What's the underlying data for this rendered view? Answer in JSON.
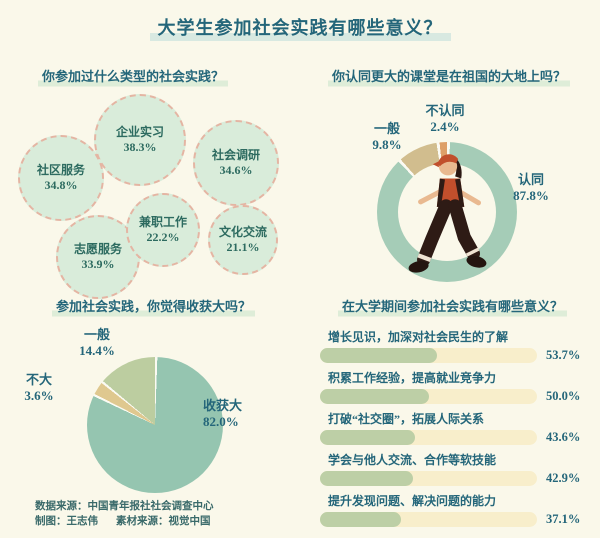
{
  "page": {
    "title": "大学生参加社会实践有哪些意义？",
    "footer": {
      "source": "数据来源：中国青年报社社会调查中心",
      "credit": "制图：王志伟",
      "material": "素材来源：视觉中国"
    }
  },
  "colors": {
    "background": "#FAF8EA",
    "title_text": "#24667A",
    "title_highlight": "#D8E9E1",
    "section_highlight": "#DEEDD8",
    "bubble_fill": "#D9ECDA",
    "bubble_border": "#E4B5A3",
    "bar_fill": "#BDCFA6",
    "bar_track": "#F8EECB"
  },
  "chart_data": [
    {
      "type": "bubble",
      "title": "你参加过什么类型的社会实践？",
      "items": [
        {
          "label": "企业实习",
          "value": 38.3,
          "display": "38.3%"
        },
        {
          "label": "社区服务",
          "value": 34.8,
          "display": "34.8%"
        },
        {
          "label": "社会调研",
          "value": 34.6,
          "display": "34.6%"
        },
        {
          "label": "志愿服务",
          "value": 33.9,
          "display": "33.9%"
        },
        {
          "label": "兼职工作",
          "value": 22.2,
          "display": "22.2%"
        },
        {
          "label": "文化交流",
          "value": 21.1,
          "display": "21.1%"
        }
      ]
    },
    {
      "type": "donut",
      "title": "你认同更大的课堂是在祖国的大地上吗？",
      "center_illustration": "walking-person",
      "slices": [
        {
          "label": "认同",
          "value": 87.8,
          "display": "87.8%",
          "color": "#A5CCB7"
        },
        {
          "label": "一般",
          "value": 9.8,
          "display": "9.8%",
          "color": "#D1BD8E"
        },
        {
          "label": "不认同",
          "value": 2.4,
          "display": "2.4%",
          "color": "#DE9F68"
        }
      ]
    },
    {
      "type": "pie",
      "title": "参加社会实践，你觉得收获大吗？",
      "slices": [
        {
          "label": "收获大",
          "value": 82.0,
          "display": "82.0%",
          "color": "#95C5B0"
        },
        {
          "label": "不大",
          "value": 3.6,
          "display": "3.6%",
          "color": "#DFC88F"
        },
        {
          "label": "一般",
          "value": 14.4,
          "display": "14.4%",
          "color": "#BCCDA0"
        }
      ]
    },
    {
      "type": "bar",
      "title": "在大学期间参加社会实践有哪些意义？",
      "xlim": [
        0,
        100
      ],
      "items": [
        {
          "label": "增长见识，加深对社会民生的了解",
          "value": 53.7,
          "display": "53.7%"
        },
        {
          "label": "积累工作经验，提高就业竞争力",
          "value": 50.0,
          "display": "50.0%"
        },
        {
          "label": "打破“社交圈”，拓展人际关系",
          "value": 43.6,
          "display": "43.6%"
        },
        {
          "label": "学会与他人交流、合作等软技能",
          "value": 42.9,
          "display": "42.9%"
        },
        {
          "label": "提升发现问题、解决问题的能力",
          "value": 37.1,
          "display": "37.1%"
        }
      ]
    }
  ]
}
